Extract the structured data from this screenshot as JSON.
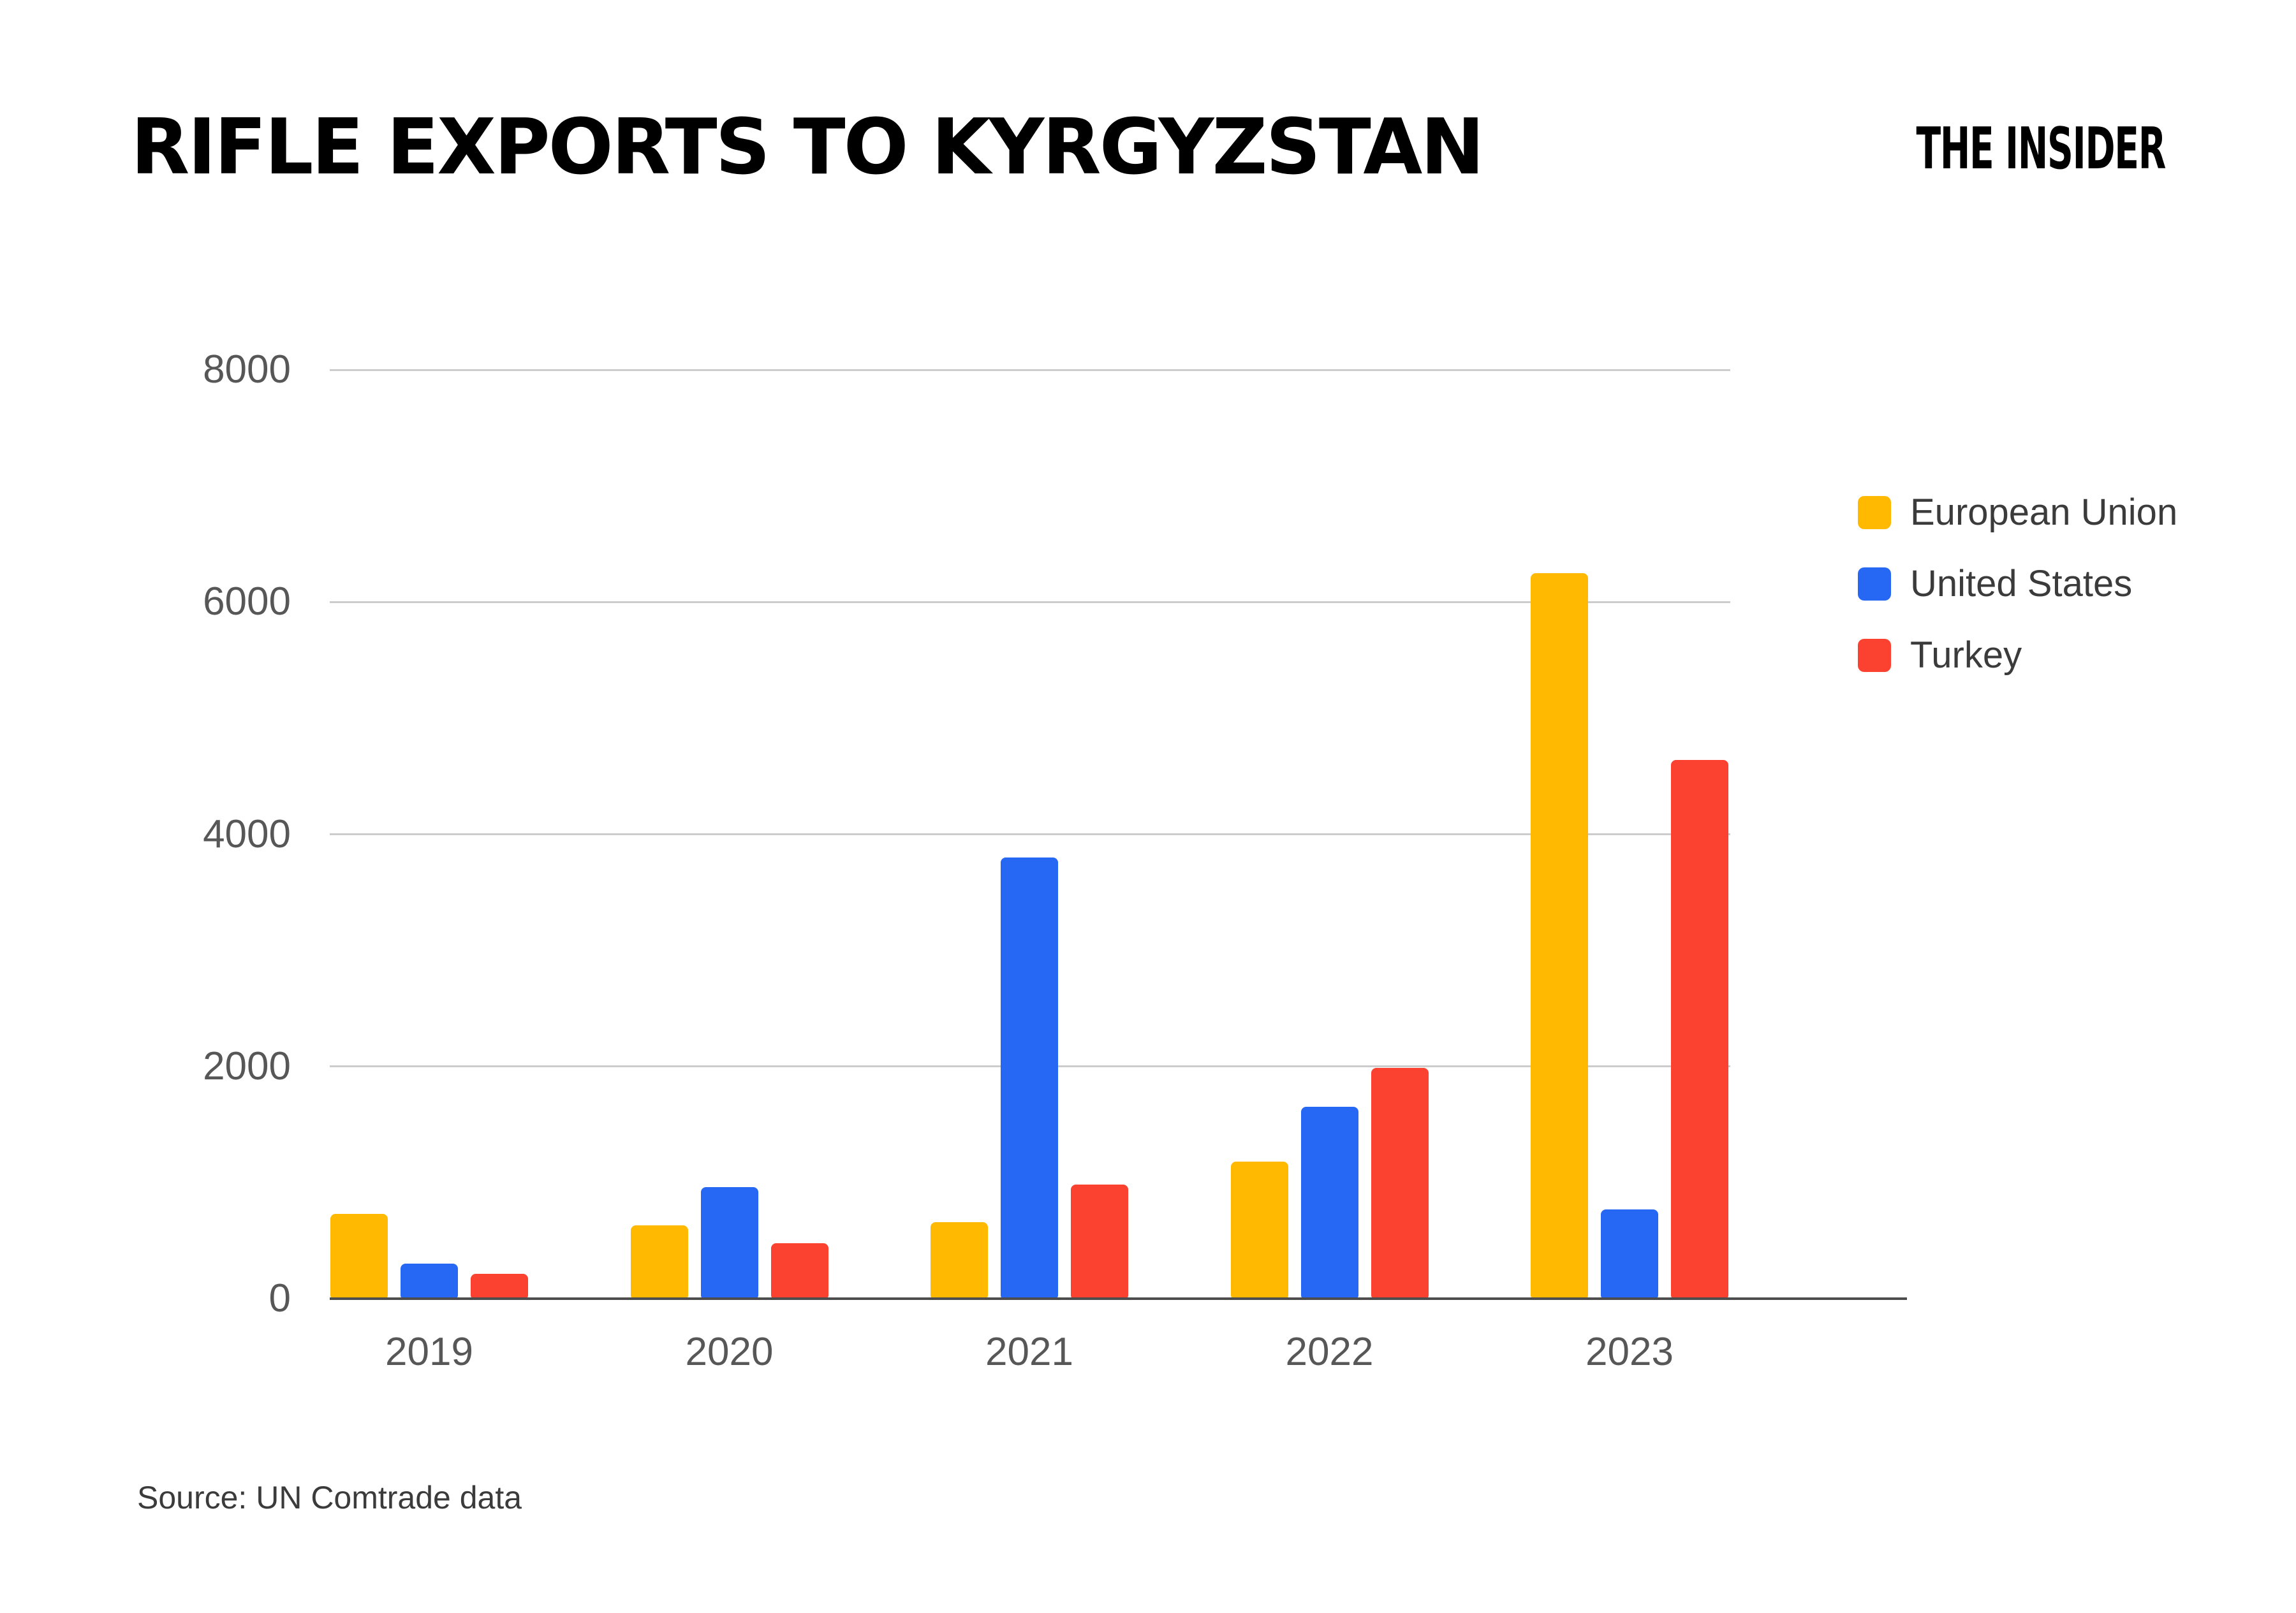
{
  "header": {
    "title": "RIFLE EXPORTS TO KYRGYZSTAN",
    "logo": "THE INSIDER"
  },
  "footer": {
    "source": "Source: UN Comtrade data"
  },
  "colors": {
    "background": "#ffffff",
    "gridline": "#cccccc",
    "axis_line": "#4d4d4d",
    "tick_label": "#575757",
    "text": "#3b3b3b"
  },
  "chart_data": {
    "type": "bar",
    "title": "RIFLE EXPORTS TO KYRGYZSTAN",
    "categories": [
      "2019",
      "2020",
      "2021",
      "2022",
      "2023"
    ],
    "series": [
      {
        "name": "European Union",
        "color": "#FFB901",
        "values": [
          730,
          630,
          660,
          1180,
          6250
        ]
      },
      {
        "name": "United States",
        "color": "#2668F3",
        "values": [
          300,
          960,
          3800,
          1650,
          770
        ]
      },
      {
        "name": "Turkey",
        "color": "#FB4230",
        "values": [
          215,
          480,
          985,
          1990,
          4640
        ]
      }
    ],
    "xlabel": "",
    "ylabel": "",
    "ylim": [
      0,
      8000
    ],
    "yticks": [
      0,
      2000,
      4000,
      6000,
      8000
    ],
    "grid": true,
    "legend_position": "right"
  }
}
